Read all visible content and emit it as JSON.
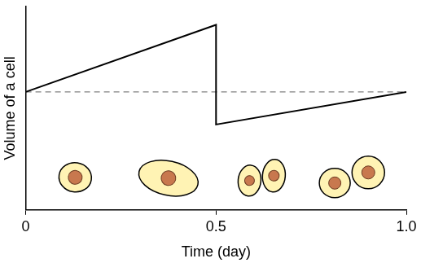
{
  "chart_data": {
    "type": "line",
    "x_label": "Time (day)",
    "y_label": "Volume of a cell",
    "series": [
      {
        "x": [
          0,
          0.5,
          0.5,
          1
        ],
        "values": [
          5.8,
          9.1,
          4.2,
          5.8
        ],
        "color": "#000000",
        "line_style": "solid"
      },
      {
        "x": [
          0,
          1
        ],
        "values": [
          5.8,
          5.8
        ],
        "color": "#808080",
        "line_style": "dashed"
      }
    ],
    "xlim": [
      0,
      1
    ],
    "ylim": [
      0,
      10
    ],
    "xticks": [
      0,
      0.5,
      {
        "value": 1,
        "label": "1.0"
      }
    ],
    "grid": false,
    "tick_labels": "x"
  }
}
